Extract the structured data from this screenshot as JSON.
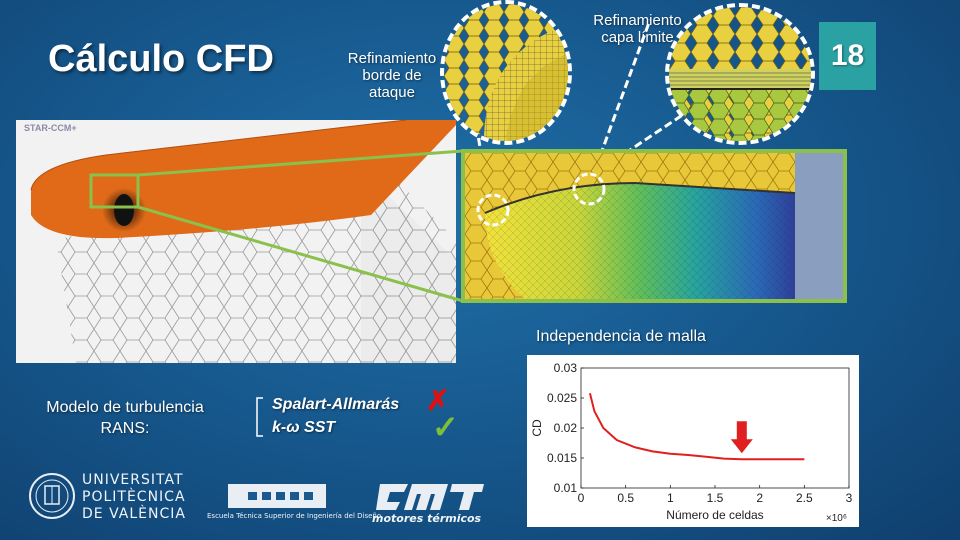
{
  "slide": {
    "title": "Cálculo CFD",
    "page_number": "18"
  },
  "callouts": {
    "leading_edge": [
      "Refinamiento",
      "borde de",
      "ataque"
    ],
    "boundary_layer": [
      "Refinamiento",
      "capa límite"
    ]
  },
  "cfd_view": {
    "software_label": "STAR-CCM+"
  },
  "mesh_independence": {
    "label": "Independencia de malla"
  },
  "turbulence": {
    "label_lines": [
      "Modelo de turbulencia",
      "RANS:"
    ],
    "models": [
      {
        "name": "Spalart-Allmarás",
        "status": "rejected",
        "mark": "✗"
      },
      {
        "name": "k-ω SST",
        "status": "accepted",
        "mark": "✓"
      }
    ]
  },
  "logos": {
    "upv": [
      "UNIVERSITAT",
      "POLITÈCNICA",
      "DE VALÈNCIA"
    ],
    "etsid": "Escuela Técnica Superior de Ingeniería del Diseño",
    "cmt": "motores térmicos"
  },
  "colors": {
    "accent_green": "#8bc04a",
    "page_badge": "#2aa2a4",
    "rejected": "#e01010",
    "accepted": "#7bbf3a",
    "curve": "#e02020",
    "arrow": "#e02020"
  },
  "chart_data": {
    "type": "line",
    "xlabel": "Número de celdas",
    "ylabel": "CD",
    "x_multiplier": "×10⁶",
    "xlim": [
      0,
      3
    ],
    "ylim": [
      0.01,
      0.03
    ],
    "x_ticks": [
      "0",
      "0.5",
      "1",
      "1.5",
      "2",
      "2.5",
      "3"
    ],
    "y_ticks": [
      "0.01",
      "0.015",
      "0.02",
      "0.025",
      "0.03"
    ],
    "series": [
      {
        "x": [
          0.1,
          0.15,
          0.25,
          0.4,
          0.6,
          0.8,
          1.0,
          1.2,
          1.4,
          1.6,
          1.8,
          2.0,
          2.5
        ],
        "y": [
          0.0258,
          0.0228,
          0.02,
          0.018,
          0.0168,
          0.0161,
          0.0157,
          0.0155,
          0.0152,
          0.0149,
          0.0148,
          0.0148,
          0.0148
        ]
      }
    ],
    "highlight_x": 1.8,
    "highlight": "selected mesh marked with a downward arrow"
  }
}
